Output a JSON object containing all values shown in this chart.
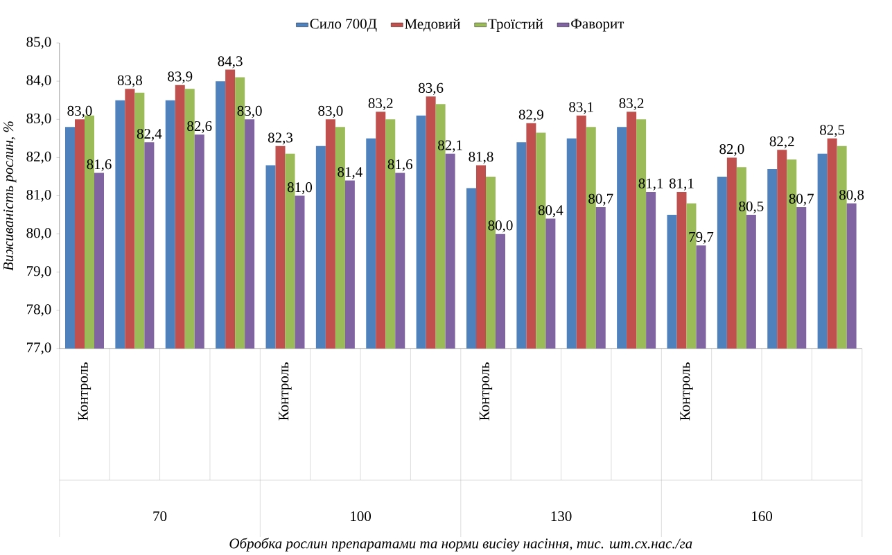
{
  "chart_data": {
    "type": "bar",
    "ylabel": "Виживаність рослин, %",
    "categories": [
      "Контроль",
      null,
      null,
      null,
      "Контроль",
      null,
      null,
      null,
      "Контроль",
      null,
      null,
      null,
      "Контроль",
      null,
      null,
      null
    ],
    "annotations": [
      "70",
      "100",
      "130",
      "160",
      "Обробка рослин препаратами та норми висіву насіння, тис. шт.сх.нас./га"
    ],
    "series": [
      {
        "name": "Сило 700Д",
        "color": "#4f81bd",
        "values": [
          82.8,
          83.5,
          83.5,
          84.0,
          81.8,
          82.3,
          82.5,
          83.1,
          81.2,
          82.4,
          82.5,
          82.8,
          80.5,
          81.5,
          81.7,
          82.1
        ]
      },
      {
        "name": "Медовий",
        "color": "#c0504d",
        "values": [
          83.0,
          83.8,
          83.9,
          84.3,
          82.3,
          83.0,
          83.2,
          83.6,
          81.8,
          82.9,
          83.1,
          83.2,
          81.1,
          82.0,
          82.2,
          82.5
        ],
        "value_labels": [
          "83,0",
          "83,8",
          "83,9",
          "84,3",
          "82,3",
          "83,0",
          "83,2",
          "83,6",
          "81,8",
          "82,9",
          "83,1",
          "83,2",
          "81,1",
          "82,0",
          "82,2",
          "82,5"
        ]
      },
      {
        "name": "Троїстий",
        "color": "#9bbb59",
        "values": [
          83.1,
          83.7,
          83.8,
          84.1,
          82.1,
          82.8,
          83.0,
          83.4,
          81.5,
          82.65,
          82.8,
          83.0,
          80.8,
          81.75,
          81.95,
          82.3
        ]
      },
      {
        "name": "Фаворит",
        "color": "#8064a2",
        "values": [
          81.6,
          82.4,
          82.6,
          83.0,
          81.0,
          81.4,
          81.6,
          82.1,
          80.0,
          80.4,
          80.7,
          81.1,
          79.7,
          80.5,
          80.7,
          80.8
        ],
        "value_labels": [
          "81,6",
          "82,4",
          "82,6",
          "83,0",
          "81,0",
          "81,4",
          "81,6",
          "82,1",
          "80,0",
          "80,4",
          "80,7",
          "81,1",
          "79,7",
          "80,5",
          "80,7",
          "80,8"
        ]
      }
    ],
    "ylim": [
      77,
      85
    ],
    "yticks": [
      {
        "value": 77,
        "label": "77,0"
      },
      {
        "value": 78,
        "label": "78,0"
      },
      {
        "value": 79,
        "label": "79,0"
      },
      {
        "value": 80,
        "label": "80,0"
      },
      {
        "value": 81,
        "label": "81,0"
      },
      {
        "value": 82,
        "label": "82,0"
      },
      {
        "value": 83,
        "label": "83,0"
      },
      {
        "value": 84,
        "label": "84,0"
      },
      {
        "value": 85,
        "label": "85,0"
      }
    ],
    "grid": false,
    "legend": "top"
  }
}
